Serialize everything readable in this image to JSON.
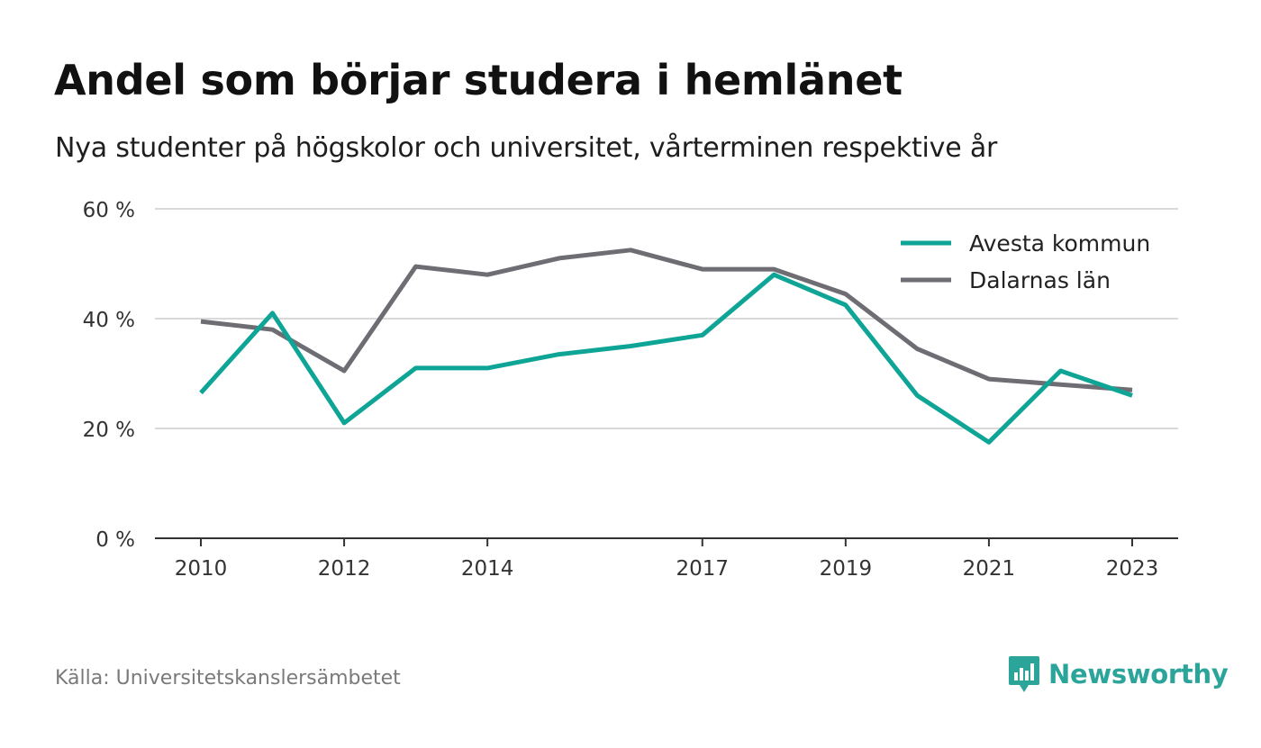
{
  "header": {
    "title": "Andel som börjar studera i hemlänet",
    "subtitle": "Nya studenter på högskolor och universitet, vårterminen respektive år"
  },
  "footer": {
    "source": "Källa: Universitetskanslersämbetet",
    "brand": "Newsworthy"
  },
  "colors": {
    "avesta": "#0ea597",
    "dalarna": "#6e6d73",
    "grid": "#d9d9d9",
    "axis": "#333333",
    "brand": "#2ba59a"
  },
  "chart_data": {
    "type": "line",
    "x": [
      2010,
      2011,
      2012,
      2013,
      2014,
      2015,
      2016,
      2017,
      2018,
      2019,
      2020,
      2021,
      2022,
      2023
    ],
    "x_tick_values": [
      2010,
      2012,
      2014,
      2017,
      2019,
      2021,
      2023
    ],
    "x_tick_labels": [
      "2010",
      "2012",
      "2014",
      "2017",
      "2019",
      "2021",
      "2023"
    ],
    "y_ticks": [
      0,
      20,
      40,
      60
    ],
    "y_tick_labels": [
      "0 %",
      "20 %",
      "40 %",
      "60 %"
    ],
    "ylim": [
      0,
      60
    ],
    "grid": true,
    "legend_position": "top-right",
    "series": [
      {
        "name": "Avesta kommun",
        "color": "#0ea597",
        "values": [
          26.5,
          41,
          21,
          31,
          31,
          33.5,
          35,
          37,
          48,
          42.5,
          26,
          17.5,
          30.5,
          26
        ]
      },
      {
        "name": "Dalarnas län",
        "color": "#6e6d73",
        "values": [
          39.5,
          38,
          30.5,
          49.5,
          48,
          51,
          52.5,
          49,
          49,
          44.5,
          34.5,
          29,
          28,
          27
        ]
      }
    ]
  }
}
